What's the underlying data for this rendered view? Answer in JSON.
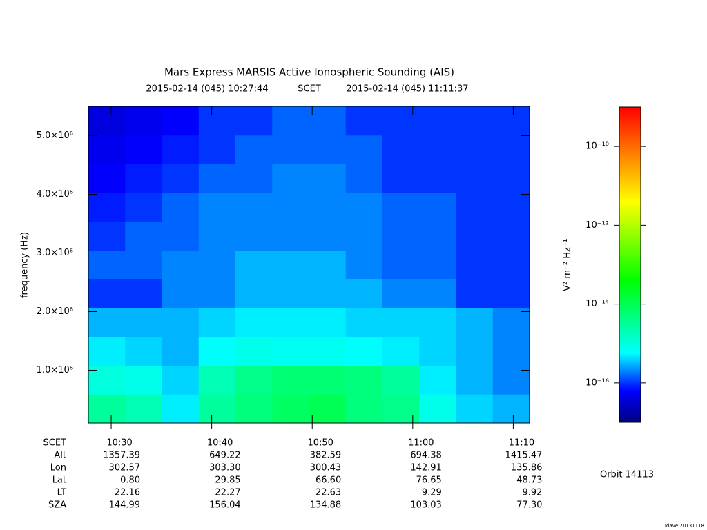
{
  "chart_data": {
    "type": "heatmap",
    "title": "Mars Express MARSIS Active Ionospheric Sounding (AIS)",
    "subtitle": [
      "2015-02-14 (045) 10:27:44",
      "SCET",
      "2015-02-14 (045) 11:11:37"
    ],
    "ylabel": "frequency (Hz)",
    "xlim": [
      627.73,
      671.62
    ],
    "xticks": [
      {
        "value": 630,
        "label": "10:30"
      },
      {
        "value": 640,
        "label": "10:40"
      },
      {
        "value": 650,
        "label": "10:50"
      },
      {
        "value": 660,
        "label": "11:00"
      },
      {
        "value": 670,
        "label": "11:10"
      }
    ],
    "ylim": [
      100000,
      5500000
    ],
    "yticks": [
      {
        "value": 1000000,
        "label": "1.0×10⁶"
      },
      {
        "value": 2000000,
        "label": "2.0×10⁶"
      },
      {
        "value": 3000000,
        "label": "3.0×10⁶"
      },
      {
        "value": 4000000,
        "label": "4.0×10⁶"
      },
      {
        "value": 5000000,
        "label": "5.0×10⁶"
      }
    ],
    "z": [
      [
        3e-15,
        2e-15,
        5e-16,
        3e-15,
        5e-15,
        8e-15,
        1e-14,
        5e-15,
        4e-15,
        8e-16,
        4e-16,
        3e-16
      ],
      [
        1e-15,
        8e-16,
        4e-16,
        2e-15,
        4e-15,
        6e-15,
        6e-15,
        5e-15,
        3e-15,
        5e-16,
        3e-16,
        2e-16
      ],
      [
        5e-16,
        4e-16,
        3e-16,
        6e-16,
        8e-16,
        7e-16,
        7e-16,
        6e-16,
        5e-16,
        4e-16,
        3e-16,
        2e-16
      ],
      [
        3e-16,
        3e-16,
        3e-16,
        4e-16,
        5e-16,
        5e-16,
        5e-16,
        4e-16,
        4e-16,
        4e-16,
        3e-16,
        2e-16
      ],
      [
        1e-16,
        1e-16,
        2e-16,
        2e-16,
        3e-16,
        3e-16,
        3e-16,
        3e-16,
        2e-16,
        2e-16,
        1e-16,
        1e-16
      ],
      [
        1.5e-16,
        1.5e-16,
        2e-16,
        2e-16,
        3e-16,
        3e-16,
        3e-16,
        2e-16,
        1.5e-16,
        1.5e-16,
        1e-16,
        1e-16
      ],
      [
        1e-16,
        1.5e-16,
        1.5e-16,
        2e-16,
        2e-16,
        2e-16,
        2e-16,
        2e-16,
        1.5e-16,
        1.5e-16,
        1e-16,
        1e-16
      ],
      [
        8e-17,
        1e-16,
        1.5e-16,
        2e-16,
        2e-16,
        2e-16,
        2e-16,
        2e-16,
        1.5e-16,
        1.5e-16,
        1e-16,
        1e-16
      ],
      [
        6e-17,
        8e-17,
        1e-16,
        1.5e-16,
        1.5e-16,
        2e-16,
        2e-16,
        1.5e-16,
        1e-16,
        1e-16,
        1e-16,
        1e-16
      ],
      [
        5e-17,
        6e-17,
        8e-17,
        1e-16,
        1.5e-16,
        1.5e-16,
        1.5e-16,
        1.5e-16,
        1e-16,
        1e-16,
        1e-16,
        1e-16
      ],
      [
        4e-17,
        5e-17,
        6e-17,
        1e-16,
        1e-16,
        1.5e-16,
        1.5e-16,
        1e-16,
        1e-16,
        1e-16,
        1e-16,
        1e-16
      ]
    ],
    "zscale": "log",
    "zlim": [
      1e-17,
      1e-09
    ],
    "zticks": [
      {
        "value": 1e-16,
        "label": "10⁻¹⁶"
      },
      {
        "value": 1e-14,
        "label": "10⁻¹⁴"
      },
      {
        "value": 1e-12,
        "label": "10⁻¹²"
      },
      {
        "value": 1e-10,
        "label": "10⁻¹⁰"
      }
    ],
    "zlabel": "V² m⁻² Hz⁻¹",
    "ephemeris": {
      "labels": [
        "SCET",
        "Alt",
        "Lon",
        "Lat",
        "LT",
        "SZA"
      ],
      "rows": [
        [
          "1357.39",
          "649.22",
          "382.59",
          "694.38",
          "1415.47"
        ],
        [
          "302.57",
          "303.30",
          "300.43",
          "142.91",
          "135.86"
        ],
        [
          "0.80",
          "29.85",
          "66.60",
          "76.65",
          "48.73"
        ],
        [
          "22.16",
          "22.27",
          "22.63",
          "9.29",
          "9.92"
        ],
        [
          "144.99",
          "156.04",
          "134.88",
          "103.03",
          "77.30"
        ]
      ]
    },
    "orbit": "Orbit 14113",
    "footer": "Idave 20131118"
  }
}
